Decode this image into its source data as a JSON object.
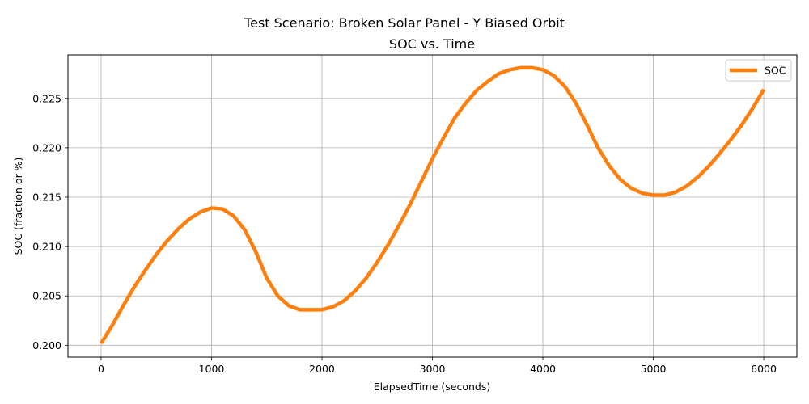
{
  "suptitle": "Test Scenario: Broken Solar Panel - Y Biased Orbit",
  "chart_data": {
    "type": "line",
    "title": "SOC vs. Time",
    "xlabel": "ElapsedTime (seconds)",
    "ylabel": "SOC (fraction or %)",
    "xlim": [
      -300,
      6300
    ],
    "ylim": [
      0.1988,
      0.2294
    ],
    "xticks": [
      0,
      1000,
      2000,
      3000,
      4000,
      5000,
      6000
    ],
    "xtick_labels": [
      "0",
      "1000",
      "2000",
      "3000",
      "4000",
      "5000",
      "6000"
    ],
    "yticks": [
      0.2,
      0.205,
      0.21,
      0.215,
      0.22,
      0.225
    ],
    "ytick_labels": [
      "0.200",
      "0.205",
      "0.210",
      "0.215",
      "0.220",
      "0.225"
    ],
    "grid": true,
    "legend_position": "top-right",
    "series": [
      {
        "name": "SOC",
        "color": "#ff7f0e",
        "x": [
          0,
          100,
          200,
          300,
          400,
          500,
          600,
          700,
          800,
          900,
          1000,
          1100,
          1200,
          1300,
          1400,
          1500,
          1600,
          1700,
          1800,
          1900,
          2000,
          2100,
          2200,
          2300,
          2400,
          2500,
          2600,
          2700,
          2800,
          2900,
          3000,
          3100,
          3200,
          3300,
          3400,
          3500,
          3600,
          3700,
          3800,
          3900,
          4000,
          4100,
          4200,
          4300,
          4400,
          4500,
          4600,
          4700,
          4800,
          4900,
          5000,
          5100,
          5200,
          5300,
          5400,
          5500,
          5600,
          5700,
          5800,
          5900,
          6000
        ],
        "y": [
          0.2002,
          0.202,
          0.204,
          0.2059,
          0.2076,
          0.2092,
          0.2106,
          0.2118,
          0.2128,
          0.2135,
          0.2139,
          0.2138,
          0.2131,
          0.2117,
          0.2095,
          0.2068,
          0.205,
          0.204,
          0.2036,
          0.2036,
          0.2036,
          0.2039,
          0.2045,
          0.2055,
          0.2068,
          0.2084,
          0.2102,
          0.2122,
          0.2143,
          0.2166,
          0.2189,
          0.221,
          0.223,
          0.2245,
          0.2258,
          0.2267,
          0.2275,
          0.2279,
          0.2281,
          0.2281,
          0.2279,
          0.2273,
          0.2262,
          0.2245,
          0.2223,
          0.22,
          0.2182,
          0.2168,
          0.2159,
          0.2154,
          0.2152,
          0.2152,
          0.2155,
          0.2161,
          0.217,
          0.2181,
          0.2194,
          0.2208,
          0.2223,
          0.224,
          0.2259
        ]
      }
    ]
  }
}
